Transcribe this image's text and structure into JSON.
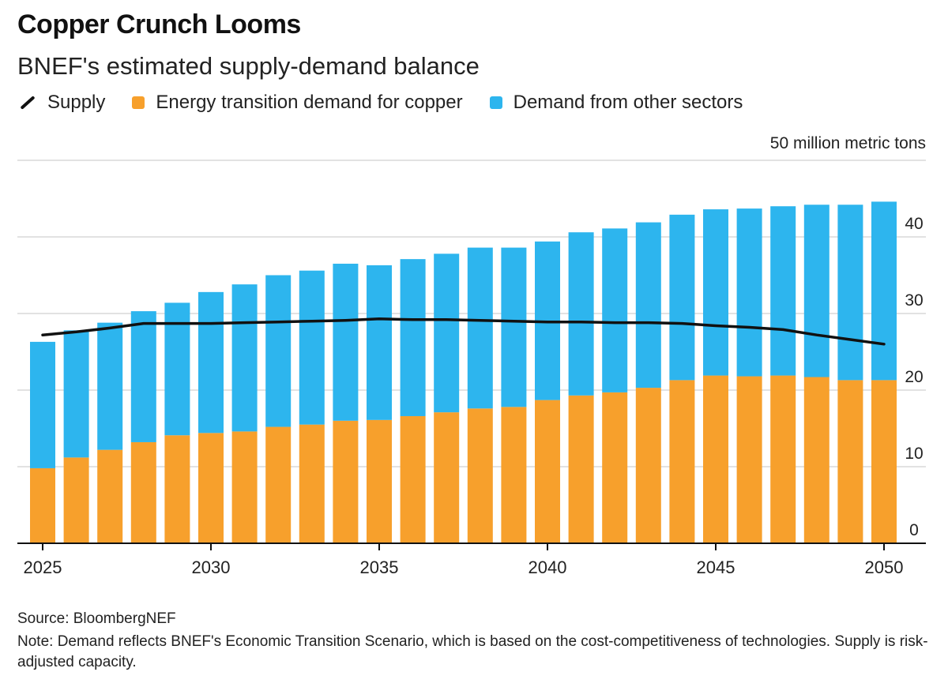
{
  "header": {
    "title": "Copper Crunch Looms",
    "subtitle": "BNEF's estimated supply-demand balance"
  },
  "legend": {
    "supply": "Supply",
    "energy": "Energy transition demand for copper",
    "other": "Demand from other sectors"
  },
  "colors": {
    "energy": "#f7a02c",
    "other": "#2db5ee",
    "supply": "#111111",
    "grid": "#d9d9d9"
  },
  "footer": {
    "source": "Source: BloombergNEF",
    "note": "Note: Demand reflects BNEF's Economic Transition Scenario, which is based on the cost-competitiveness of technologies. Supply is risk-adjusted capacity."
  },
  "chart_data": {
    "type": "bar",
    "stacked": true,
    "y_unit_label": "50 million metric tons",
    "ylim": [
      0,
      50
    ],
    "yticks": [
      0,
      10,
      20,
      30,
      40
    ],
    "xticks": [
      2025,
      2030,
      2035,
      2040,
      2045,
      2050
    ],
    "grid": true,
    "y_axis_position": "right",
    "legend_position": "top",
    "categories": [
      2025,
      2026,
      2027,
      2028,
      2029,
      2030,
      2031,
      2032,
      2033,
      2034,
      2035,
      2036,
      2037,
      2038,
      2039,
      2040,
      2041,
      2042,
      2043,
      2044,
      2045,
      2046,
      2047,
      2048,
      2049,
      2050
    ],
    "series": [
      {
        "name": "Energy transition demand for copper",
        "type": "bar",
        "values": [
          9.8,
          11.2,
          12.2,
          13.2,
          14.1,
          14.4,
          14.6,
          15.2,
          15.5,
          16.0,
          16.1,
          16.6,
          17.1,
          17.6,
          17.8,
          18.7,
          19.3,
          19.7,
          20.3,
          21.3,
          21.9,
          21.8,
          21.9,
          21.7,
          21.3,
          21.3
        ]
      },
      {
        "name": "Demand from other sectors",
        "type": "bar",
        "values": [
          16.5,
          16.6,
          16.6,
          17.1,
          17.3,
          18.4,
          19.2,
          19.8,
          20.1,
          20.5,
          20.2,
          20.5,
          20.7,
          21.0,
          20.8,
          20.7,
          21.3,
          21.4,
          21.6,
          21.6,
          21.7,
          21.9,
          22.1,
          22.5,
          22.9,
          23.3
        ]
      },
      {
        "name": "Supply",
        "type": "line",
        "values": [
          27.2,
          27.6,
          28.1,
          28.7,
          28.7,
          28.7,
          28.8,
          28.9,
          29.0,
          29.1,
          29.3,
          29.2,
          29.2,
          29.1,
          29.0,
          28.9,
          28.9,
          28.8,
          28.8,
          28.7,
          28.4,
          28.2,
          27.9,
          27.2,
          26.6,
          26.0
        ]
      }
    ]
  }
}
